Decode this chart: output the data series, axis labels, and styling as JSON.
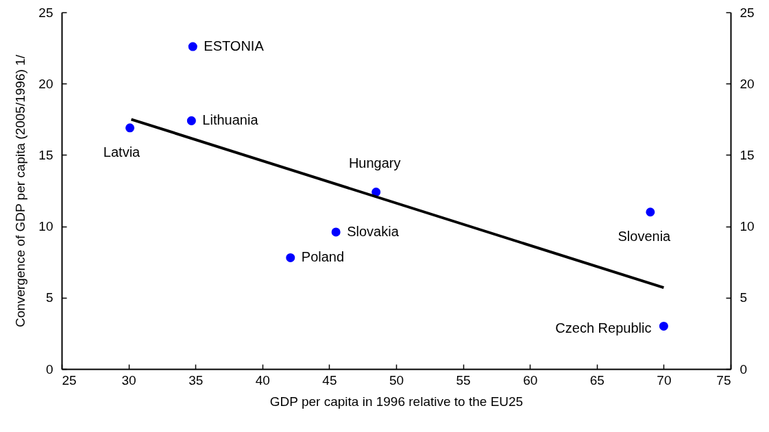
{
  "chart_data": {
    "type": "scatter",
    "xlabel": "GDP per capita in 1996 relative to the EU25",
    "ylabel": "Convergence of GDP per capita (2005/1996) 1/",
    "series": [
      {
        "color": "#0000ff",
        "x": [
          34.8,
          34.7,
          30.1,
          48.5,
          45.5,
          42.1,
          69.0,
          70.0
        ],
        "values": [
          22.6,
          17.4,
          16.9,
          12.4,
          9.6,
          7.8,
          11.0,
          3.0
        ]
      },
      {
        "type": "line",
        "color": "#000000",
        "x": [
          30.2,
          70.0
        ],
        "values": [
          17.5,
          5.7
        ]
      }
    ],
    "annotations": [
      {
        "text": "ESTONIA",
        "x": 34.8,
        "y": 22.6
      },
      {
        "text": "Lithuania",
        "x": 34.7,
        "y": 17.4
      },
      {
        "text": "Latvia",
        "x": 30.1,
        "y": 16.9
      },
      {
        "text": "Hungary",
        "x": 48.5,
        "y": 12.4
      },
      {
        "text": "Slovakia",
        "x": 45.5,
        "y": 9.6
      },
      {
        "text": "Poland",
        "x": 42.1,
        "y": 7.8
      },
      {
        "text": "Slovenia",
        "x": 69.0,
        "y": 11.0
      },
      {
        "text": "Czech Republic",
        "x": 70.0,
        "y": 3.0
      }
    ],
    "xlim": [
      25,
      75
    ],
    "xticks": [
      25,
      30,
      35,
      40,
      45,
      50,
      55,
      60,
      65,
      70,
      75
    ],
    "ylim": [
      0,
      25
    ],
    "yticks": [
      0,
      5,
      10,
      15,
      20,
      25
    ],
    "y2lim": [
      0,
      25
    ],
    "y2ticks": [
      0,
      5,
      10,
      15,
      20,
      25
    ],
    "grid": false
  }
}
